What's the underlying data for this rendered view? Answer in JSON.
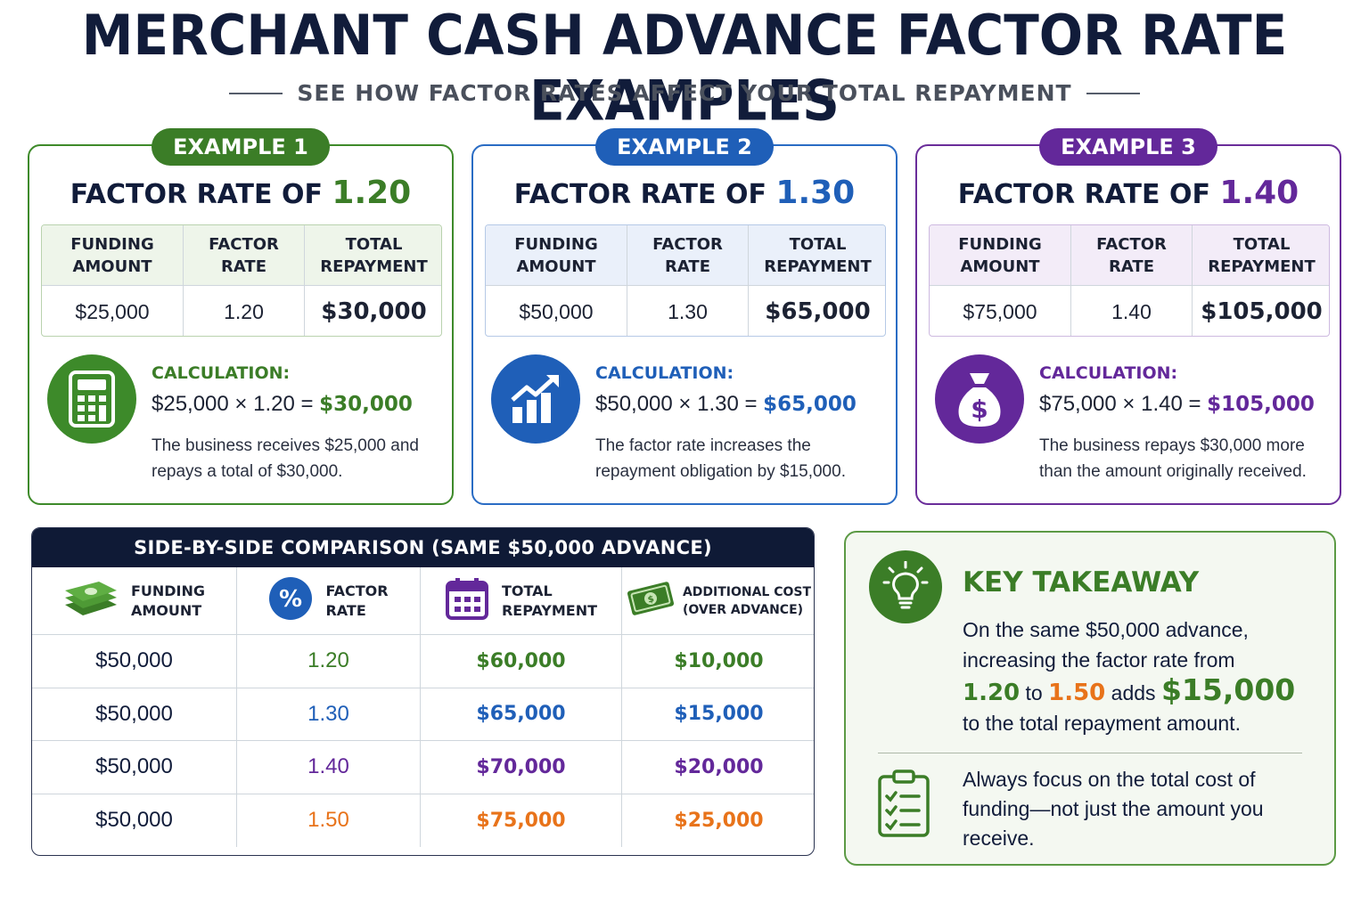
{
  "title": "MERCHANT CASH ADVANCE FACTOR RATE EXAMPLES",
  "subtitle": "SEE HOW FACTOR RATES AFFECT YOUR TOTAL REPAYMENT",
  "examples": [
    {
      "badge": "EXAMPLE 1",
      "heading_prefix": "FACTOR RATE OF",
      "heading_rate": "1.20",
      "col1": "FUNDING AMOUNT",
      "col2": "FACTOR RATE",
      "col3": "TOTAL REPAYMENT",
      "funding": "$25,000",
      "rate": "1.20",
      "total": "$30,000",
      "calc_label": "CALCULATION:",
      "calc_left": "$25,000 × 1.20 =",
      "calc_result": "$30,000",
      "note": "The business receives $25,000 and repays a total of $30,000.",
      "icon": "calculator-icon"
    },
    {
      "badge": "EXAMPLE 2",
      "heading_prefix": "FACTOR RATE OF",
      "heading_rate": "1.30",
      "col1": "FUNDING AMOUNT",
      "col2": "FACTOR RATE",
      "col3": "TOTAL REPAYMENT",
      "funding": "$50,000",
      "rate": "1.30",
      "total": "$65,000",
      "calc_label": "CALCULATION:",
      "calc_left": "$50,000 × 1.30 =",
      "calc_result": "$65,000",
      "note": "The factor rate increases the repayment obligation by $15,000.",
      "icon": "growth-chart-icon"
    },
    {
      "badge": "EXAMPLE 3",
      "heading_prefix": "FACTOR RATE OF",
      "heading_rate": "1.40",
      "col1": "FUNDING AMOUNT",
      "col2": "FACTOR RATE",
      "col3": "TOTAL REPAYMENT",
      "funding": "$75,000",
      "rate": "1.40",
      "total": "$105,000",
      "calc_label": "CALCULATION:",
      "calc_left": "$75,000 × 1.40 =",
      "calc_result": "$105,000",
      "note": "The business repays $30,000 more than the amount originally received.",
      "icon": "money-bag-icon"
    }
  ],
  "comparison": {
    "title": "SIDE-BY-SIDE COMPARISON (SAME $50,000 ADVANCE)",
    "headers": [
      {
        "l1": "FUNDING",
        "l2": "AMOUNT",
        "icon": "cash-stack-icon"
      },
      {
        "l1": "FACTOR",
        "l2": "RATE",
        "icon": "percent-icon"
      },
      {
        "l1": "TOTAL",
        "l2": "REPAYMENT",
        "icon": "calendar-icon"
      },
      {
        "l1": "ADDITIONAL COST",
        "l2": "(OVER ADVANCE)",
        "icon": "banknote-icon"
      }
    ],
    "rows": [
      [
        "$50,000",
        "1.20",
        "$60,000",
        "$10,000"
      ],
      [
        "$50,000",
        "1.30",
        "$65,000",
        "$15,000"
      ],
      [
        "$50,000",
        "1.40",
        "$70,000",
        "$20,000"
      ],
      [
        "$50,000",
        "1.50",
        "$75,000",
        "$25,000"
      ]
    ],
    "row_colors": [
      "#3b7d27",
      "#1f5fb8",
      "#63289a",
      "#e8731a"
    ]
  },
  "takeaway": {
    "title": "KEY TAKEAWAY",
    "p1_a": "On the same $50,000 advance, increasing the factor rate from",
    "p1_from": "1.20",
    "p1_to_word": "to",
    "p1_to": "1.50",
    "p1_adds": "adds",
    "p1_amount": "$15,000",
    "p1_end": "to the total repayment amount.",
    "p2": "Always focus on the total cost of funding—not just the amount you receive.",
    "icons": [
      "lightbulb-icon",
      "checklist-icon"
    ]
  },
  "colors": {
    "green": "#3b7d27",
    "blue": "#1f5fb8",
    "purple": "#63289a",
    "orange": "#e8731a",
    "navy": "#0f1a36"
  }
}
